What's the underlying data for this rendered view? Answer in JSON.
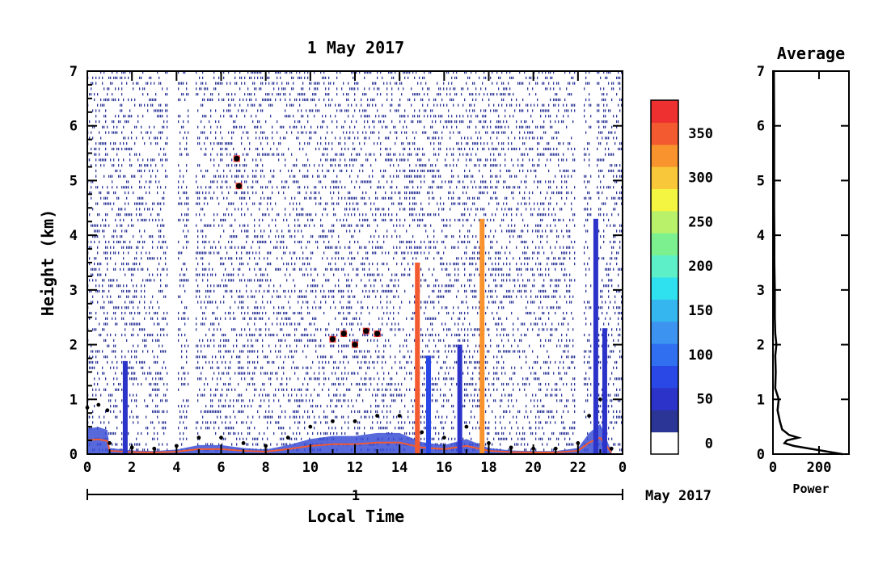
{
  "chart_data": [
    {
      "type": "heatmap",
      "title": "1 May 2017",
      "xlabel": "Local Time",
      "ylabel": "Height (km)",
      "xlim": [
        0,
        24
      ],
      "ylim": [
        0,
        7
      ],
      "x_ticks": [
        "0",
        "2",
        "4",
        "6",
        "8",
        "10",
        "12",
        "14",
        "16",
        "18",
        "20",
        "22",
        "0"
      ],
      "y_ticks": [
        "0",
        "1",
        "2",
        "3",
        "4",
        "5",
        "6",
        "7"
      ],
      "date_axis": {
        "day_label": "1",
        "month_label": "May 2017"
      },
      "colorbar": {
        "ticks": [
          "0",
          "50",
          "100",
          "150",
          "200",
          "250",
          "300",
          "350"
        ],
        "range": [
          0,
          380
        ],
        "colors": [
          "#ffffff",
          "#2b3596",
          "#2c33c8",
          "#2a48e6",
          "#2f6ff0",
          "#3c93f0",
          "#36b6ef",
          "#2fe0ef",
          "#5df0c8",
          "#7cf08f",
          "#b9f26a",
          "#f3f540",
          "#f8c83a",
          "#f8932e",
          "#f35a30",
          "#ee3030"
        ]
      },
      "features": {
        "boundary_layer_top_km": [
          {
            "x": 0.0,
            "y": 0.85
          },
          {
            "x": 0.5,
            "y": 0.9
          },
          {
            "x": 0.9,
            "y": 0.8
          },
          {
            "x": 1.0,
            "y": 0.2
          },
          {
            "x": 2.0,
            "y": 0.12
          },
          {
            "x": 3.0,
            "y": 0.1
          },
          {
            "x": 4.0,
            "y": 0.15
          },
          {
            "x": 5.0,
            "y": 0.3
          },
          {
            "x": 6.0,
            "y": 0.3
          },
          {
            "x": 7.0,
            "y": 0.2
          },
          {
            "x": 8.0,
            "y": 0.15
          },
          {
            "x": 9.0,
            "y": 0.3
          },
          {
            "x": 10.0,
            "y": 0.5
          },
          {
            "x": 11.0,
            "y": 0.6
          },
          {
            "x": 12.0,
            "y": 0.6
          },
          {
            "x": 13.0,
            "y": 0.7
          },
          {
            "x": 14.0,
            "y": 0.7
          },
          {
            "x": 15.0,
            "y": 0.4
          },
          {
            "x": 16.0,
            "y": 0.3
          },
          {
            "x": 17.0,
            "y": 0.5
          },
          {
            "x": 18.0,
            "y": 0.2
          },
          {
            "x": 19.0,
            "y": 0.12
          },
          {
            "x": 20.0,
            "y": 0.1
          },
          {
            "x": 21.0,
            "y": 0.1
          },
          {
            "x": 22.0,
            "y": 0.2
          },
          {
            "x": 22.5,
            "y": 0.7
          },
          {
            "x": 23.0,
            "y": 1.0
          },
          {
            "x": 23.5,
            "y": 0.1
          }
        ],
        "cloud_layer_km": [
          {
            "x": 6.7,
            "y": 5.4
          },
          {
            "x": 6.8,
            "y": 4.9
          },
          {
            "x": 11.0,
            "y": 2.1
          },
          {
            "x": 11.5,
            "y": 2.2
          },
          {
            "x": 12.0,
            "y": 2.0
          },
          {
            "x": 12.5,
            "y": 2.25
          },
          {
            "x": 13.0,
            "y": 2.2
          }
        ],
        "vertical_streaks": [
          {
            "x": 1.7,
            "y_top": 1.7,
            "value": 60
          },
          {
            "x": 14.8,
            "y_top": 3.5,
            "value": 360
          },
          {
            "x": 15.3,
            "y_top": 1.8,
            "value": 70
          },
          {
            "x": 16.7,
            "y_top": 2.0,
            "value": 60
          },
          {
            "x": 17.7,
            "y_top": 4.3,
            "value": 340
          },
          {
            "x": 22.8,
            "y_top": 4.3,
            "value": 40
          },
          {
            "x": 23.2,
            "y_top": 2.3,
            "value": 40
          }
        ]
      }
    },
    {
      "type": "line",
      "title": "Average",
      "xlabel": "Power",
      "ylabel": "",
      "xlim": [
        0,
        330
      ],
      "ylim": [
        0,
        7
      ],
      "x_ticks": [
        "0",
        "200"
      ],
      "y_ticks": [
        "0",
        "1",
        "2",
        "3",
        "4",
        "5",
        "6",
        "7"
      ],
      "series": [
        {
          "x": [
            300,
            230,
            160,
            90,
            50,
            60,
            110,
            70,
            40,
            30,
            20,
            25,
            10,
            12,
            10,
            15,
            10,
            8,
            8,
            6,
            6,
            5,
            5,
            5,
            5,
            4
          ],
          "y": [
            0.0,
            0.05,
            0.1,
            0.15,
            0.2,
            0.25,
            0.3,
            0.35,
            0.45,
            0.6,
            0.8,
            1.0,
            1.2,
            1.5,
            1.8,
            2.0,
            2.2,
            2.5,
            3.0,
            3.5,
            4.0,
            4.5,
            5.0,
            5.5,
            6.0,
            7.0
          ]
        }
      ]
    }
  ]
}
